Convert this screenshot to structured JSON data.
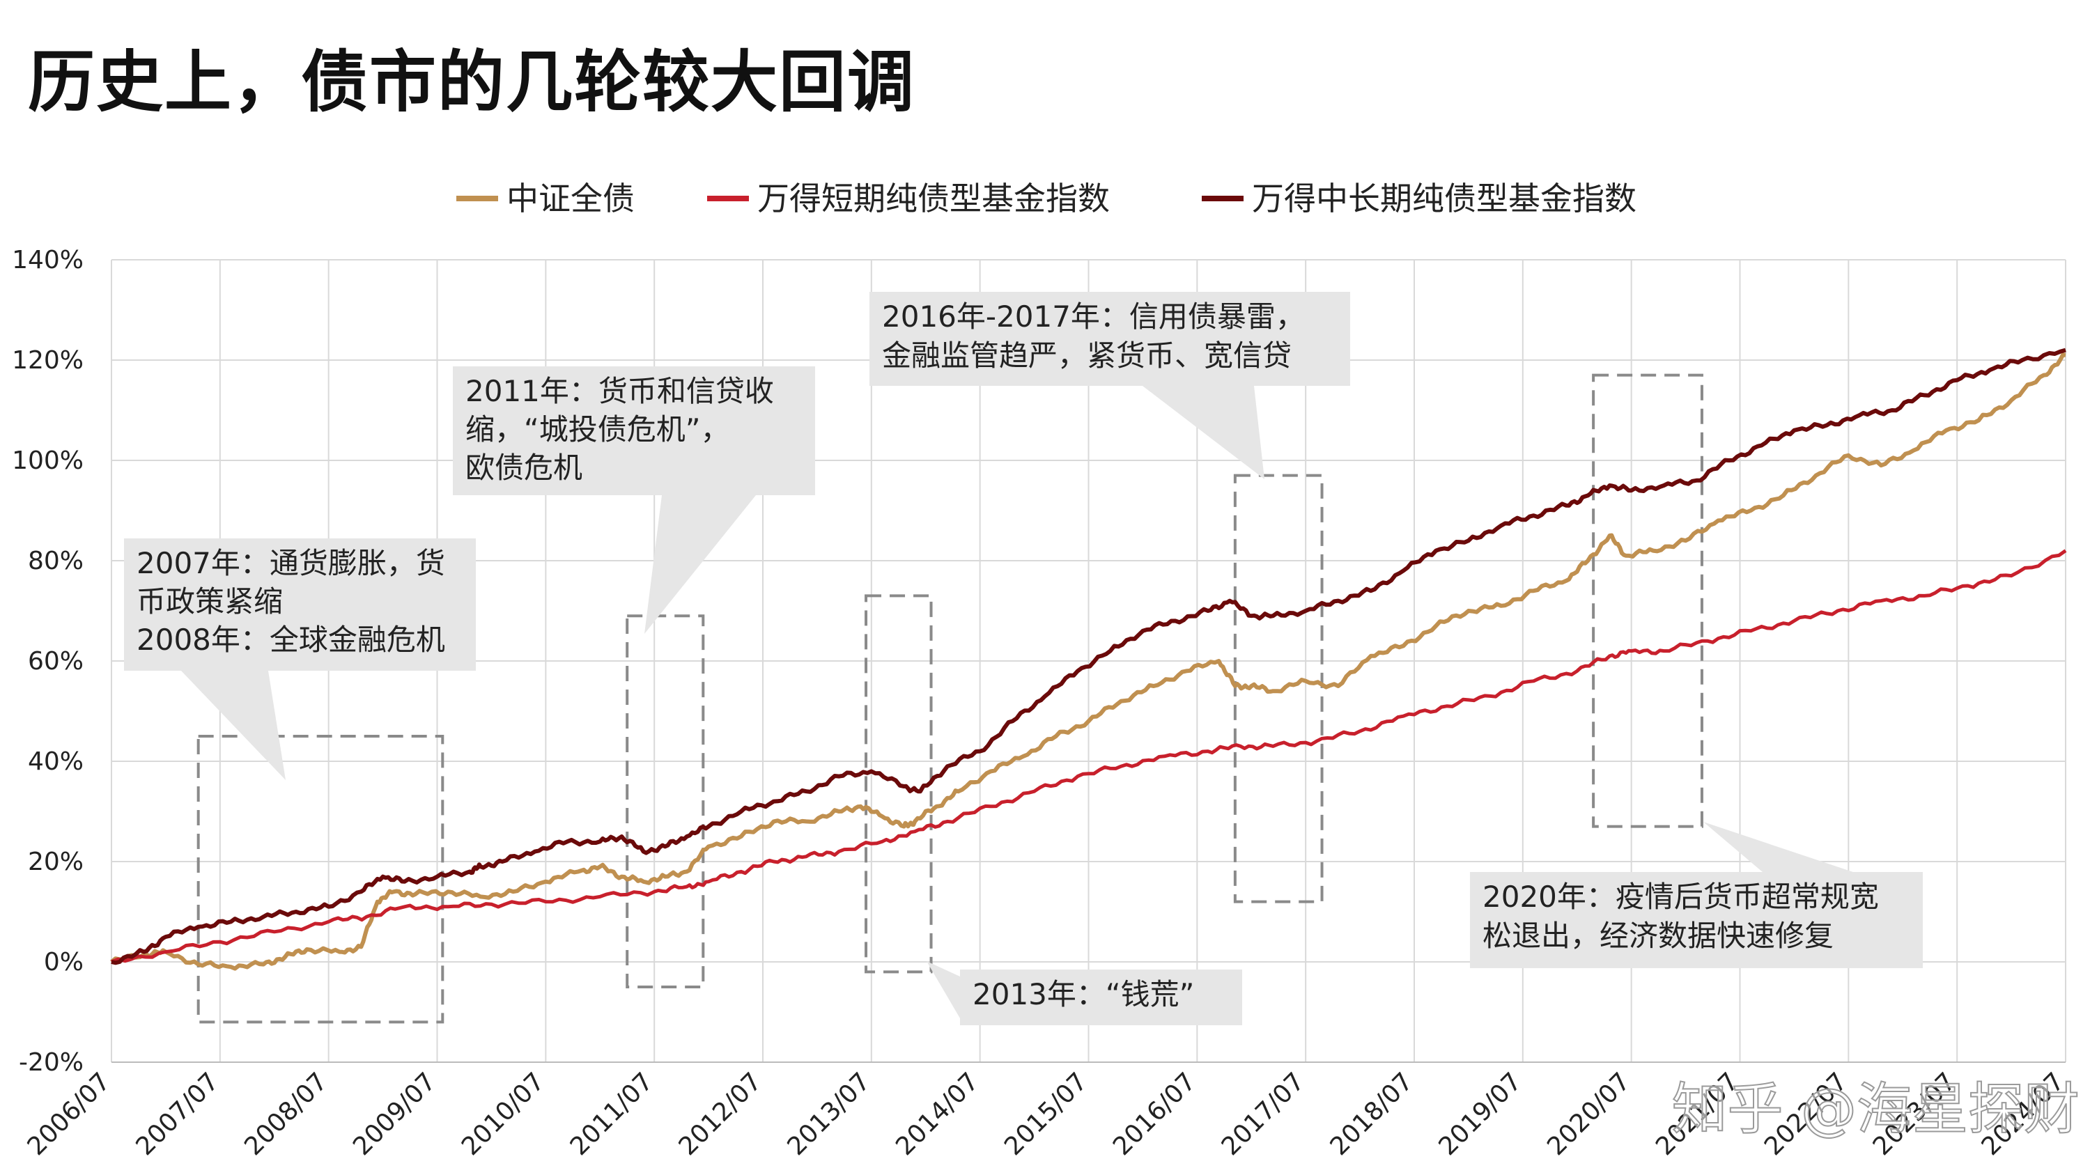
{
  "title": "历史上，债市的几轮较大回调",
  "watermark": "知乎 @海星探财",
  "colors": {
    "csi_bond": "#C09050",
    "short_term_fund": "#C8202C",
    "mid_long_fund": "#6B0A0A",
    "annotation_bg": "#E6E6E6",
    "grid": "#D9D9D9",
    "dashed_box": "#8A8A8A"
  },
  "chart_data": {
    "type": "line",
    "title": "历史上，债市的几轮较大回调",
    "xlabel": "",
    "ylabel": "",
    "ylim": [
      -20,
      140
    ],
    "y_unit": "%",
    "y_ticks": [
      "-20%",
      "0%",
      "20%",
      "40%",
      "60%",
      "80%",
      "100%",
      "120%",
      "140%"
    ],
    "x_tick_labels": [
      "2006/07",
      "2007/07",
      "2008/07",
      "2009/07",
      "2010/07",
      "2011/07",
      "2012/07",
      "2013/07",
      "2014/07",
      "2015/07",
      "2016/07",
      "2017/07",
      "2018/07",
      "2019/07",
      "2020/07",
      "2021/07",
      "2022/07",
      "2023/07",
      "2024/07"
    ],
    "grid": true,
    "legend_position": "top",
    "series": [
      {
        "name": "中证全债",
        "color": "#C09050",
        "x": [
          2006.5,
          2006.8,
          2007.0,
          2007.3,
          2007.6,
          2007.9,
          2008.1,
          2008.3,
          2008.6,
          2008.8,
          2008.95,
          2009.1,
          2009.3,
          2009.6,
          2009.9,
          2010.2,
          2010.5,
          2010.8,
          2011.0,
          2011.2,
          2011.4,
          2011.6,
          2011.8,
          2012.0,
          2012.3,
          2012.6,
          2012.9,
          2013.2,
          2013.4,
          2013.6,
          2013.8,
          2013.9,
          2014.1,
          2014.3,
          2014.6,
          2014.9,
          2015.2,
          2015.5,
          2015.8,
          2016.1,
          2016.4,
          2016.7,
          2016.85,
          2017.0,
          2017.2,
          2017.5,
          2017.8,
          2018.1,
          2018.4,
          2018.7,
          2019.0,
          2019.3,
          2019.6,
          2019.9,
          2020.1,
          2020.3,
          2020.45,
          2020.7,
          2021.0,
          2021.3,
          2021.6,
          2021.9,
          2022.2,
          2022.5,
          2022.8,
          2023.1,
          2023.4,
          2023.7,
          2024.0,
          2024.3,
          2024.5
        ],
        "values": [
          0,
          1.5,
          2,
          -0.5,
          -1,
          -0.5,
          1,
          2.5,
          2,
          3,
          12,
          14,
          13.5,
          14,
          13,
          14,
          16,
          18,
          19,
          17,
          16,
          17,
          18,
          23,
          25,
          28,
          28,
          30,
          31,
          29,
          27,
          28,
          31,
          34,
          38,
          41,
          45,
          48,
          52,
          55,
          58,
          60,
          55,
          55,
          54,
          56,
          55,
          61,
          63,
          67,
          70,
          71,
          74,
          76,
          80,
          85,
          81,
          82,
          84,
          88,
          90,
          93,
          97,
          101,
          99,
          102,
          106,
          108,
          112,
          117,
          121
        ]
      },
      {
        "name": "万得短期纯债型基金指数",
        "color": "#C8202C",
        "x": [
          2006.5,
          2007.0,
          2007.5,
          2008.0,
          2008.5,
          2008.85,
          2009.2,
          2009.6,
          2010.0,
          2010.5,
          2011.0,
          2011.5,
          2011.8,
          2012.0,
          2012.3,
          2012.6,
          2012.9,
          2013.2,
          2013.6,
          2013.9,
          2014.2,
          2014.6,
          2015.0,
          2015.4,
          2015.8,
          2016.2,
          2016.6,
          2016.9,
          2017.2,
          2017.6,
          2018.0,
          2018.4,
          2018.8,
          2019.2,
          2019.6,
          2020.0,
          2020.3,
          2020.5,
          2020.8,
          2021.2,
          2021.6,
          2022.0,
          2022.4,
          2022.8,
          2023.2,
          2023.6,
          2024.0,
          2024.5
        ],
        "values": [
          0,
          2,
          4,
          6,
          8,
          9,
          11,
          11,
          11.5,
          12,
          13,
          14,
          15,
          16,
          18,
          20,
          21,
          22,
          24,
          26,
          28,
          31,
          34,
          37,
          39,
          41,
          42,
          43,
          43,
          44,
          46,
          49,
          51,
          53,
          56,
          58,
          61,
          62,
          62,
          64,
          66,
          68,
          70,
          72,
          73,
          75,
          77,
          82
        ]
      },
      {
        "name": "万得中长期纯债型基金指数",
        "color": "#6B0A0A",
        "x": [
          2006.5,
          2006.8,
          2007.0,
          2007.3,
          2007.6,
          2007.9,
          2008.2,
          2008.5,
          2008.8,
          2009.0,
          2009.2,
          2009.5,
          2009.8,
          2009.9,
          2010.1,
          2010.4,
          2010.7,
          2011.0,
          2011.2,
          2011.4,
          2011.6,
          2011.8,
          2012.0,
          2012.3,
          2012.6,
          2012.9,
          2013.2,
          2013.5,
          2013.8,
          2013.95,
          2014.2,
          2014.5,
          2014.8,
          2015.1,
          2015.4,
          2015.7,
          2016.0,
          2016.3,
          2016.6,
          2016.8,
          2017.0,
          2017.2,
          2017.5,
          2017.8,
          2018.1,
          2018.4,
          2018.7,
          2019.0,
          2019.3,
          2019.6,
          2019.9,
          2020.1,
          2020.3,
          2020.5,
          2020.8,
          2021.1,
          2021.4,
          2021.7,
          2022.0,
          2022.3,
          2022.6,
          2022.9,
          2023.2,
          2023.5,
          2023.8,
          2024.1,
          2024.5
        ],
        "values": [
          0,
          2,
          5,
          7,
          8,
          9,
          10,
          11,
          14,
          17,
          16,
          17,
          18,
          19,
          20,
          22,
          24,
          24,
          25,
          22,
          23,
          25,
          27,
          30,
          32,
          34,
          37,
          38,
          35,
          34,
          39,
          42,
          48,
          53,
          58,
          62,
          66,
          68,
          70,
          72,
          69,
          69,
          70,
          72,
          74,
          78,
          82,
          84,
          87,
          89,
          91,
          93,
          95,
          94,
          95,
          96,
          100,
          103,
          106,
          107,
          109,
          110,
          113,
          116,
          118,
          120,
          122
        ]
      }
    ],
    "annotations": [
      {
        "id": "gfc",
        "lines": [
          "2007年：通货膨胀，货",
          "币政策紧缩",
          "2008年：全球金融危机"
        ]
      },
      {
        "id": "euro",
        "lines": [
          "2011年：货币和信贷收",
          "缩，“城投债危机”，",
          "欧债危机"
        ]
      },
      {
        "id": "money",
        "lines": [
          "2013年：“钱荒”"
        ]
      },
      {
        "id": "credit",
        "lines": [
          "2016年-2017年：信用债暴雷，",
          "金融监管趋严，紧货币、宽信贷"
        ]
      },
      {
        "id": "covid",
        "lines": [
          "2020年：疫情后货币超常规宽",
          "松退出，经济数据快速修复"
        ]
      }
    ]
  }
}
